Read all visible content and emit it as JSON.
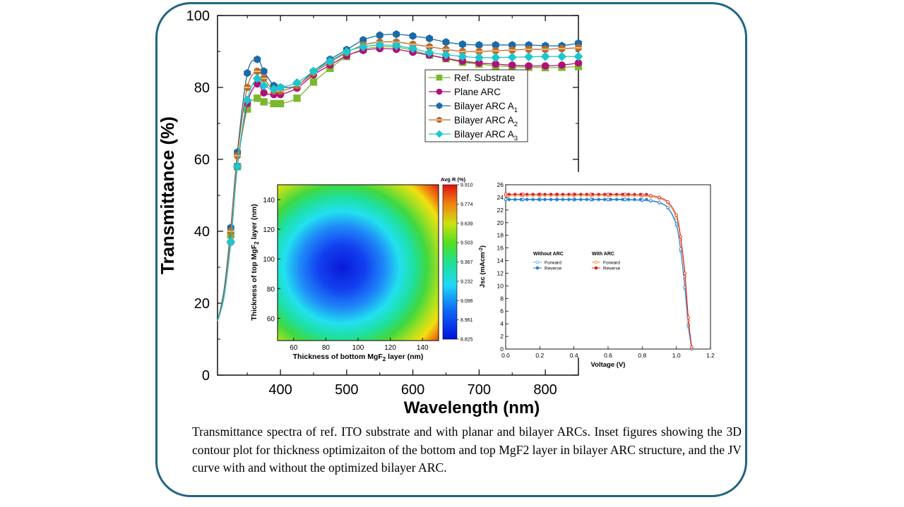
{
  "caption": "Transmittance spectra of ref. ITO substrate and with planar and bilayer ARCs. Inset figures showing the 3D contour plot for thickness optimizaiton of the bottom and top MgF2 layer in bilayer ARC structure, and the JV curve with and without the optimized bilayer ARC.",
  "chart_data": [
    {
      "type": "line",
      "xlabel": "Wavelength (nm)",
      "ylabel": "Transmittance (%)",
      "xlim": [
        305,
        850
      ],
      "ylim": [
        0,
        100
      ],
      "xticks": [
        400,
        500,
        600,
        700,
        800
      ],
      "yticks": [
        0,
        20,
        40,
        60,
        80,
        100
      ],
      "legend_position": "upper-center",
      "x": [
        305,
        315,
        325,
        335,
        350,
        365,
        375,
        390,
        400,
        425,
        450,
        475,
        500,
        525,
        550,
        575,
        600,
        625,
        650,
        675,
        700,
        725,
        750,
        775,
        800,
        825,
        850
      ],
      "series": [
        {
          "name": "Ref. Substrate",
          "marker": "square",
          "color": "#7cb82f",
          "values": [
            15,
            22,
            39,
            58,
            74,
            77,
            76,
            75.5,
            75.5,
            77,
            81.5,
            85.3,
            88.6,
            90.6,
            91.3,
            91.2,
            90.3,
            89,
            88,
            87,
            86.5,
            86,
            85.8,
            85.6,
            85.5,
            85.6,
            85.8
          ]
        },
        {
          "name": "Plane ARC",
          "marker": "circle",
          "color": "#b0107a",
          "values": [
            15,
            22,
            37,
            58,
            75.5,
            81,
            78.5,
            78,
            78,
            79.8,
            83.5,
            86.2,
            88.8,
            90.3,
            90.8,
            90.6,
            89.8,
            89,
            88.1,
            87.3,
            86.8,
            86.5,
            86.2,
            86,
            86,
            86.2,
            86.8
          ]
        },
        {
          "name": "Bilayer ARC A",
          "sub": "1",
          "marker": "hexagon",
          "color": "#1a6aa8",
          "values": [
            15,
            24,
            41,
            62,
            84,
            87.8,
            84.5,
            80.5,
            80,
            80.5,
            84.5,
            87.8,
            90.5,
            93.2,
            94.5,
            94.8,
            94.3,
            93.6,
            92.6,
            92,
            91.8,
            91.8,
            91.8,
            91.8,
            91.6,
            91.6,
            92.3
          ]
        },
        {
          "name": "Bilayer ARC A",
          "sub": "2",
          "marker": "circle-split",
          "color": "#c06a22",
          "values": [
            15,
            23,
            40,
            61,
            80,
            84.5,
            82.5,
            79,
            79,
            80.5,
            84,
            87,
            89.7,
            91.8,
            92.6,
            92.6,
            92,
            91.3,
            90.6,
            90,
            90,
            90.2,
            90.4,
            90.6,
            90.6,
            90.8,
            91
          ]
        },
        {
          "name": "Bilayer ARC A",
          "sub": "3",
          "marker": "diamond",
          "color": "#1cc6cf",
          "values": [
            15,
            22,
            37,
            58,
            76.5,
            82.5,
            80.5,
            79.5,
            80,
            81.3,
            84.5,
            87.3,
            89.9,
            91.3,
            91.8,
            91.6,
            90.8,
            89.7,
            89.1,
            88.6,
            88.3,
            88.3,
            88.4,
            88.5,
            88.6,
            88.6,
            88.6
          ]
        }
      ]
    },
    {
      "type": "heatmap",
      "xlabel": "Thickness of bottom MgF",
      "xlabel_sub": "2",
      "xlabel_suffix": " layer (nm)",
      "ylabel": "Thickness of top MgF",
      "ylabel_sub": "2",
      "ylabel_suffix": " layer (nm)",
      "xlim": [
        50,
        150
      ],
      "ylim": [
        45,
        150
      ],
      "xticks": [
        60,
        80,
        100,
        120,
        140
      ],
      "yticks": [
        60,
        80,
        100,
        120,
        140
      ],
      "colorbar_title": "Avg R (%)",
      "colorbar_ticks": [
        "9.910",
        "9.774",
        "9.639",
        "9.503",
        "9.367",
        "9.232",
        "9.096",
        "8.961",
        "8.825"
      ],
      "min_value": 8.825,
      "max_value": 9.91,
      "minimum_at": [
        88,
        98
      ]
    },
    {
      "type": "line",
      "xlabel": "Voltage (V)",
      "ylabel": "Jsc (mAcm",
      "ylabel_sup": "-2",
      "ylabel_suffix": ")",
      "xlim": [
        0,
        1.2
      ],
      "ylim": [
        0,
        26
      ],
      "xticks": [
        "0.0",
        "0.2",
        "0.4",
        "0.6",
        "0.8",
        "1.0",
        "1.2"
      ],
      "yticks": [
        0,
        2,
        4,
        6,
        8,
        10,
        12,
        14,
        16,
        18,
        20,
        22,
        24,
        26
      ],
      "x": [
        0,
        0.1,
        0.2,
        0.3,
        0.4,
        0.5,
        0.6,
        0.7,
        0.8,
        0.85,
        0.9,
        0.95,
        1.0,
        1.025,
        1.05,
        1.07,
        1.09
      ],
      "groups": [
        {
          "title": "Without ARC",
          "series": [
            {
              "name": "Forward",
              "color": "#5aaee8",
              "values": [
                23.6,
                23.6,
                23.6,
                23.6,
                23.6,
                23.6,
                23.6,
                23.6,
                23.5,
                23.4,
                23.1,
                22.3,
                19.5,
                15.5,
                9.5,
                3.5,
                0
              ]
            },
            {
              "name": "Reverse",
              "color": "#2a7ad0",
              "values": [
                23.7,
                23.7,
                23.7,
                23.7,
                23.7,
                23.7,
                23.7,
                23.7,
                23.6,
                23.5,
                23.2,
                22.4,
                19.8,
                15.8,
                9.8,
                3.8,
                0
              ]
            }
          ]
        },
        {
          "title": "With ARC",
          "series": [
            {
              "name": "Forward",
              "color": "#f08a2a",
              "values": [
                24.3,
                24.3,
                24.3,
                24.3,
                24.3,
                24.3,
                24.3,
                24.3,
                24.2,
                24.1,
                23.8,
                23.1,
                20.8,
                17.3,
                11.5,
                4.5,
                0.2
              ]
            },
            {
              "name": "Reverse",
              "color": "#d82020",
              "values": [
                24.5,
                24.5,
                24.5,
                24.5,
                24.5,
                24.5,
                24.5,
                24.5,
                24.4,
                24.3,
                24,
                23.3,
                21.2,
                17.8,
                12,
                5,
                0.3
              ]
            }
          ]
        }
      ]
    }
  ]
}
